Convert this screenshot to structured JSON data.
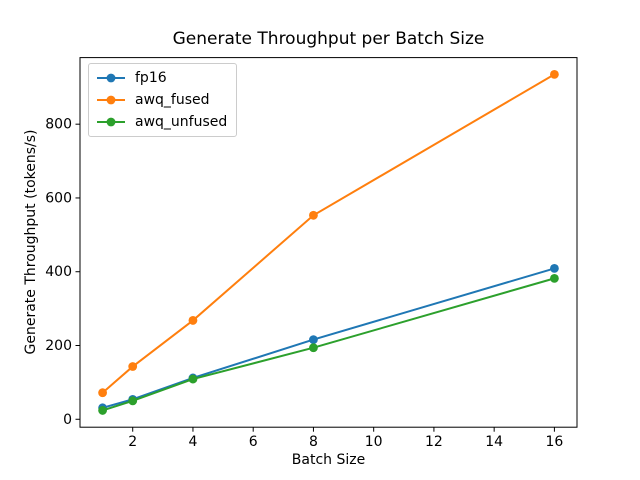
{
  "chart_data": {
    "type": "line",
    "title": "Generate Throughput per Batch Size",
    "xlabel": "Batch Size",
    "ylabel": "Generate Throughput (tokens/s)",
    "x": [
      1,
      2,
      4,
      8,
      16
    ],
    "series": [
      {
        "name": "fp16",
        "color": "#1f77b4",
        "values": [
          31,
          54,
          112,
          216,
          409
        ]
      },
      {
        "name": "awq_fused",
        "color": "#ff7f0e",
        "values": [
          72,
          143,
          268,
          553,
          935
        ]
      },
      {
        "name": "awq_unfused",
        "color": "#2ca02c",
        "values": [
          24,
          50,
          109,
          194,
          382
        ]
      }
    ],
    "xticks": [
      2,
      4,
      6,
      8,
      10,
      12,
      14,
      16
    ],
    "yticks": [
      0,
      200,
      400,
      600,
      800
    ],
    "xlim": [
      0.25,
      16.75
    ],
    "ylim": [
      -21.5,
      980.5
    ],
    "grid": false,
    "legend_position": "upper left",
    "marker": "o",
    "axis_color": "#000000",
    "background": "#ffffff"
  }
}
